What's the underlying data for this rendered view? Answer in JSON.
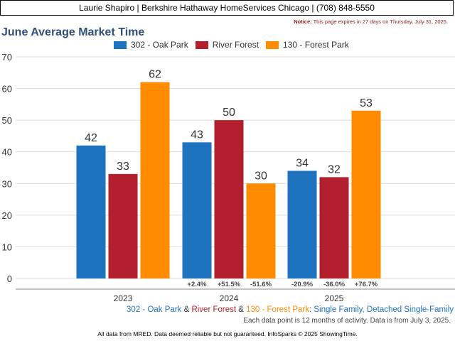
{
  "header": {
    "text": "Laurie Shapiro | Berkshire Hathaway HomeServices Chicago | (708) 848-5550"
  },
  "notice": {
    "label": "Notice:",
    "text": " This page expires in 27 days on Thursday, July 31, 2025."
  },
  "chart_data": {
    "type": "bar",
    "title": "June Average Market Time",
    "categories": [
      "2023",
      "2024",
      "2025"
    ],
    "series": [
      {
        "name": "302 - Oak Park",
        "color": "#1e73be",
        "values": [
          42,
          43,
          34
        ],
        "changes": [
          "",
          "+2.4%",
          "-20.9%"
        ]
      },
      {
        "name": "River Forest",
        "color": "#b21f2d",
        "values": [
          33,
          50,
          32
        ],
        "changes": [
          "",
          "+51.5%",
          "-36.0%"
        ]
      },
      {
        "name": "130 - Forest Park",
        "color": "#ff8c00",
        "values": [
          62,
          30,
          53
        ],
        "changes": [
          "",
          "-51.6%",
          "+76.7%"
        ]
      }
    ],
    "ylim": [
      0,
      70
    ],
    "yticks": [
      0,
      10,
      20,
      30,
      40,
      50,
      60,
      70
    ],
    "grid": true,
    "legend": "top"
  },
  "footnote": {
    "series1": "302 - Oak Park",
    "sep1": " & ",
    "series2": "River Forest",
    "sep2": " & ",
    "series3": "130 - Forest Park",
    "desc": ": Single Family, Detached Single-Family"
  },
  "footnote2": "Each data point is 12 months of activity. Data is from July 3, 2025.",
  "footer": "All data from MRED. Data deemed reliable but not guaranteed. InfoSparks © 2025 ShowingTime."
}
